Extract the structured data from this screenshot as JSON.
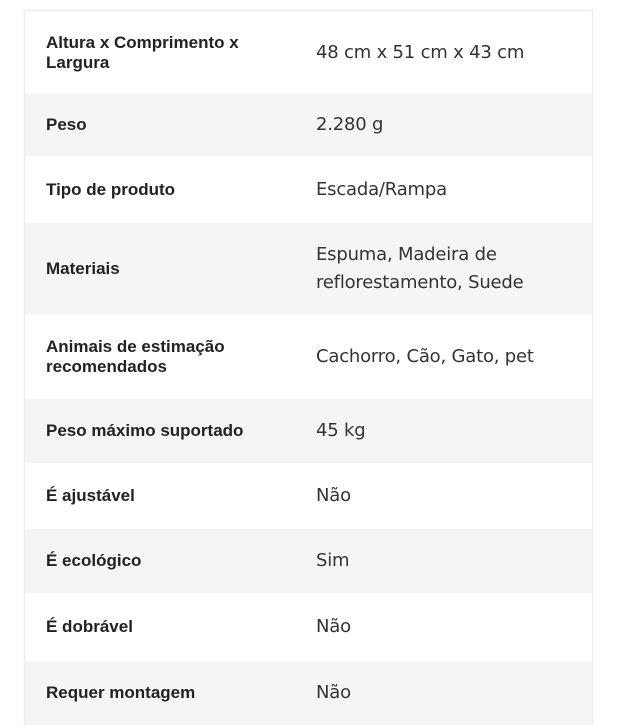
{
  "specs": [
    {
      "label": "Altura x Comprimento x Largura",
      "value": "48 cm x 51 cm x 43 cm"
    },
    {
      "label": "Peso",
      "value": "2.280 g"
    },
    {
      "label": "Tipo de produto",
      "value": "Escada/Rampa"
    },
    {
      "label": "Materiais",
      "value": "Espuma, Madeira de reflorestamento, Suede"
    },
    {
      "label": "Animais de estimação recomendados",
      "value": "Cachorro, Cão, Gato, pet"
    },
    {
      "label": "Peso máximo suportado",
      "value": "45 kg"
    },
    {
      "label": "É ajustável",
      "value": "Não"
    },
    {
      "label": "É ecológico",
      "value": "Sim"
    },
    {
      "label": "É dobrável",
      "value": "Não"
    },
    {
      "label": "Requer montagem",
      "value": "Não"
    }
  ]
}
